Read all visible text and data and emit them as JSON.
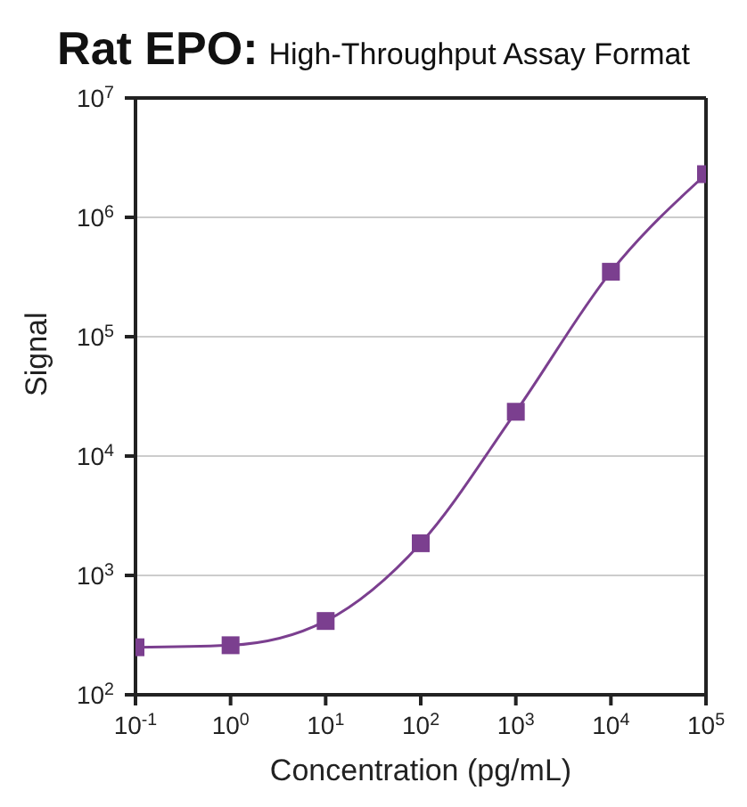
{
  "chart_data": {
    "type": "line",
    "title": "Rat EPO:",
    "subtitle": "High-Throughput Assay Format",
    "xlabel": "Concentration  (pg/mL)",
    "ylabel": "Signal",
    "x": [
      0.1,
      1,
      10,
      100,
      1000,
      10000,
      100000
    ],
    "series": [
      {
        "color": "#7b3f8f",
        "values": [
          250,
          260,
          415,
          1860,
          23500,
          350000,
          2300000
        ]
      }
    ],
    "log": "xy",
    "xlim": [
      0.1,
      100000
    ],
    "ylim": [
      100,
      10000000
    ],
    "xticks": [
      {
        "value": 0.1,
        "label": "10$^{-1}$"
      },
      {
        "value": 1,
        "label": "10$^{0}$"
      },
      {
        "value": 10,
        "label": "10$^{1}$"
      },
      {
        "value": 100,
        "label": "10$^{2}$"
      },
      {
        "value": 1000,
        "label": "10$^{3}$"
      },
      {
        "value": 10000,
        "label": "10$^{4}$"
      },
      {
        "value": 100000,
        "label": "10$^{5}$"
      }
    ],
    "yticks": [
      {
        "value": 100,
        "label": "10$^{2}$"
      },
      {
        "value": 1000,
        "label": "10$^{3}$"
      },
      {
        "value": 10000,
        "label": "10$^{4}$"
      },
      {
        "value": 100000,
        "label": "10$^{5}$"
      },
      {
        "value": 1000000,
        "label": "10$^{6}$"
      },
      {
        "value": 10000000,
        "label": "10$^{7}$"
      }
    ],
    "grid": "y",
    "marker": "square",
    "line_style": "solid",
    "legend": false
  }
}
